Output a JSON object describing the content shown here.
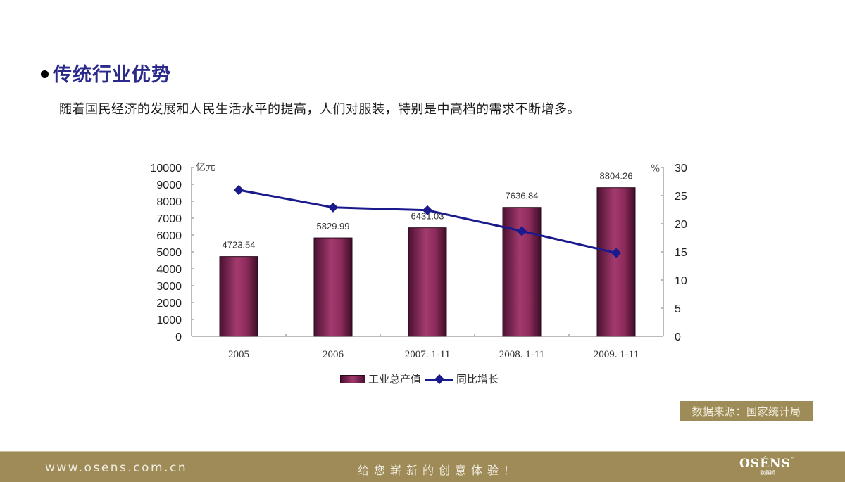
{
  "header": {
    "title": "传统行业优势",
    "subtitle": "随着国民经济的发展和人民生活水平的提高，人们对服装，特别是中高档的需求不断增多。"
  },
  "colors": {
    "title": "#2b2a8a",
    "bar": "#8e2c5c",
    "line": "#1a1a8c",
    "footer_bg": "#9e8b57",
    "source_bg": "#9e8c58"
  },
  "chart_data": {
    "type": "bar",
    "title": "",
    "categories": [
      "2005",
      "2006",
      "2007. 1-11",
      "2008. 1-11",
      "2009. 1-11"
    ],
    "series": [
      {
        "name": "工业总产值",
        "type": "bar",
        "axis": "left",
        "values": [
          4723.54,
          5829.99,
          6431.03,
          7636.84,
          8804.26
        ],
        "labels": [
          "4723.54",
          "5829.99",
          "6431.03",
          "7636.84",
          "8804.26"
        ]
      },
      {
        "name": "同比增长",
        "type": "line",
        "axis": "right",
        "values": [
          26.0,
          22.9,
          22.4,
          18.7,
          14.8
        ]
      }
    ],
    "ylabel": "亿元",
    "ylim": [
      0,
      10000
    ],
    "yticks": [
      "0",
      "1000",
      "2000",
      "3000",
      "4000",
      "5000",
      "6000",
      "7000",
      "8000",
      "9000",
      "10000"
    ],
    "y2label": "%",
    "y2lim": [
      0,
      30
    ],
    "y2ticks": [
      "0",
      "5",
      "10",
      "15",
      "20",
      "25",
      "30"
    ],
    "grid": false,
    "legend_position": "bottom"
  },
  "legend": {
    "bar_label": "工业总产值",
    "line_label": "同比增长"
  },
  "source": "数据来源：国家统计局",
  "footer": {
    "url": "www.osens.com.cn",
    "slogan": "给您崭新的创意体验！",
    "logo": "OSÉNS",
    "logo_tm": "™",
    "logo_sub": "欧赛斯"
  }
}
